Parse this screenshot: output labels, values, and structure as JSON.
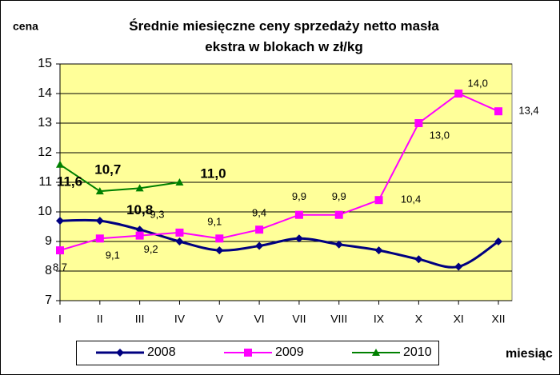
{
  "chart_data": {
    "type": "line",
    "title": "Średnie miesięczne ceny sprzedaży netto masła ekstra w blokach w zł/kg",
    "y_axis_label": "cena",
    "x_axis_label": "miesiąc",
    "categories": [
      "I",
      "II",
      "III",
      "IV",
      "V",
      "VI",
      "VII",
      "VIII",
      "IX",
      "X",
      "XI",
      "XII"
    ],
    "series": [
      {
        "name": "2008",
        "color": "#000080",
        "marker": "diamond",
        "smooth": true,
        "values": [
          9.7,
          9.7,
          9.4,
          9.0,
          8.7,
          8.85,
          9.1,
          8.9,
          8.7,
          8.4,
          8.15,
          9.0
        ]
      },
      {
        "name": "2009",
        "color": "#ff00ff",
        "marker": "square",
        "smooth": false,
        "values": [
          8.7,
          9.1,
          9.2,
          9.3,
          9.1,
          9.4,
          9.9,
          9.9,
          10.4,
          13.0,
          14.0,
          13.4
        ],
        "value_labels": [
          "8,7",
          "9,1",
          "9,2",
          "9,3",
          "9,1",
          "9,4",
          "9,9",
          "9,9",
          "10,4",
          "13,0",
          "14,0",
          "13,4"
        ]
      },
      {
        "name": "2010",
        "color": "#008000",
        "marker": "triangle",
        "smooth": false,
        "values": [
          11.6,
          10.7,
          10.8,
          11.0,
          null,
          null,
          null,
          null,
          null,
          null,
          null,
          null
        ],
        "value_labels": [
          "11,6",
          "10,7",
          "10,8",
          "11,0",
          null,
          null,
          null,
          null,
          null,
          null,
          null,
          null
        ]
      }
    ],
    "ylim": [
      7,
      15
    ],
    "yticks": [
      7,
      8,
      9,
      10,
      11,
      12,
      13,
      14,
      15
    ],
    "grid": true,
    "plot_background": "#ffff99",
    "legend": "bottom"
  }
}
